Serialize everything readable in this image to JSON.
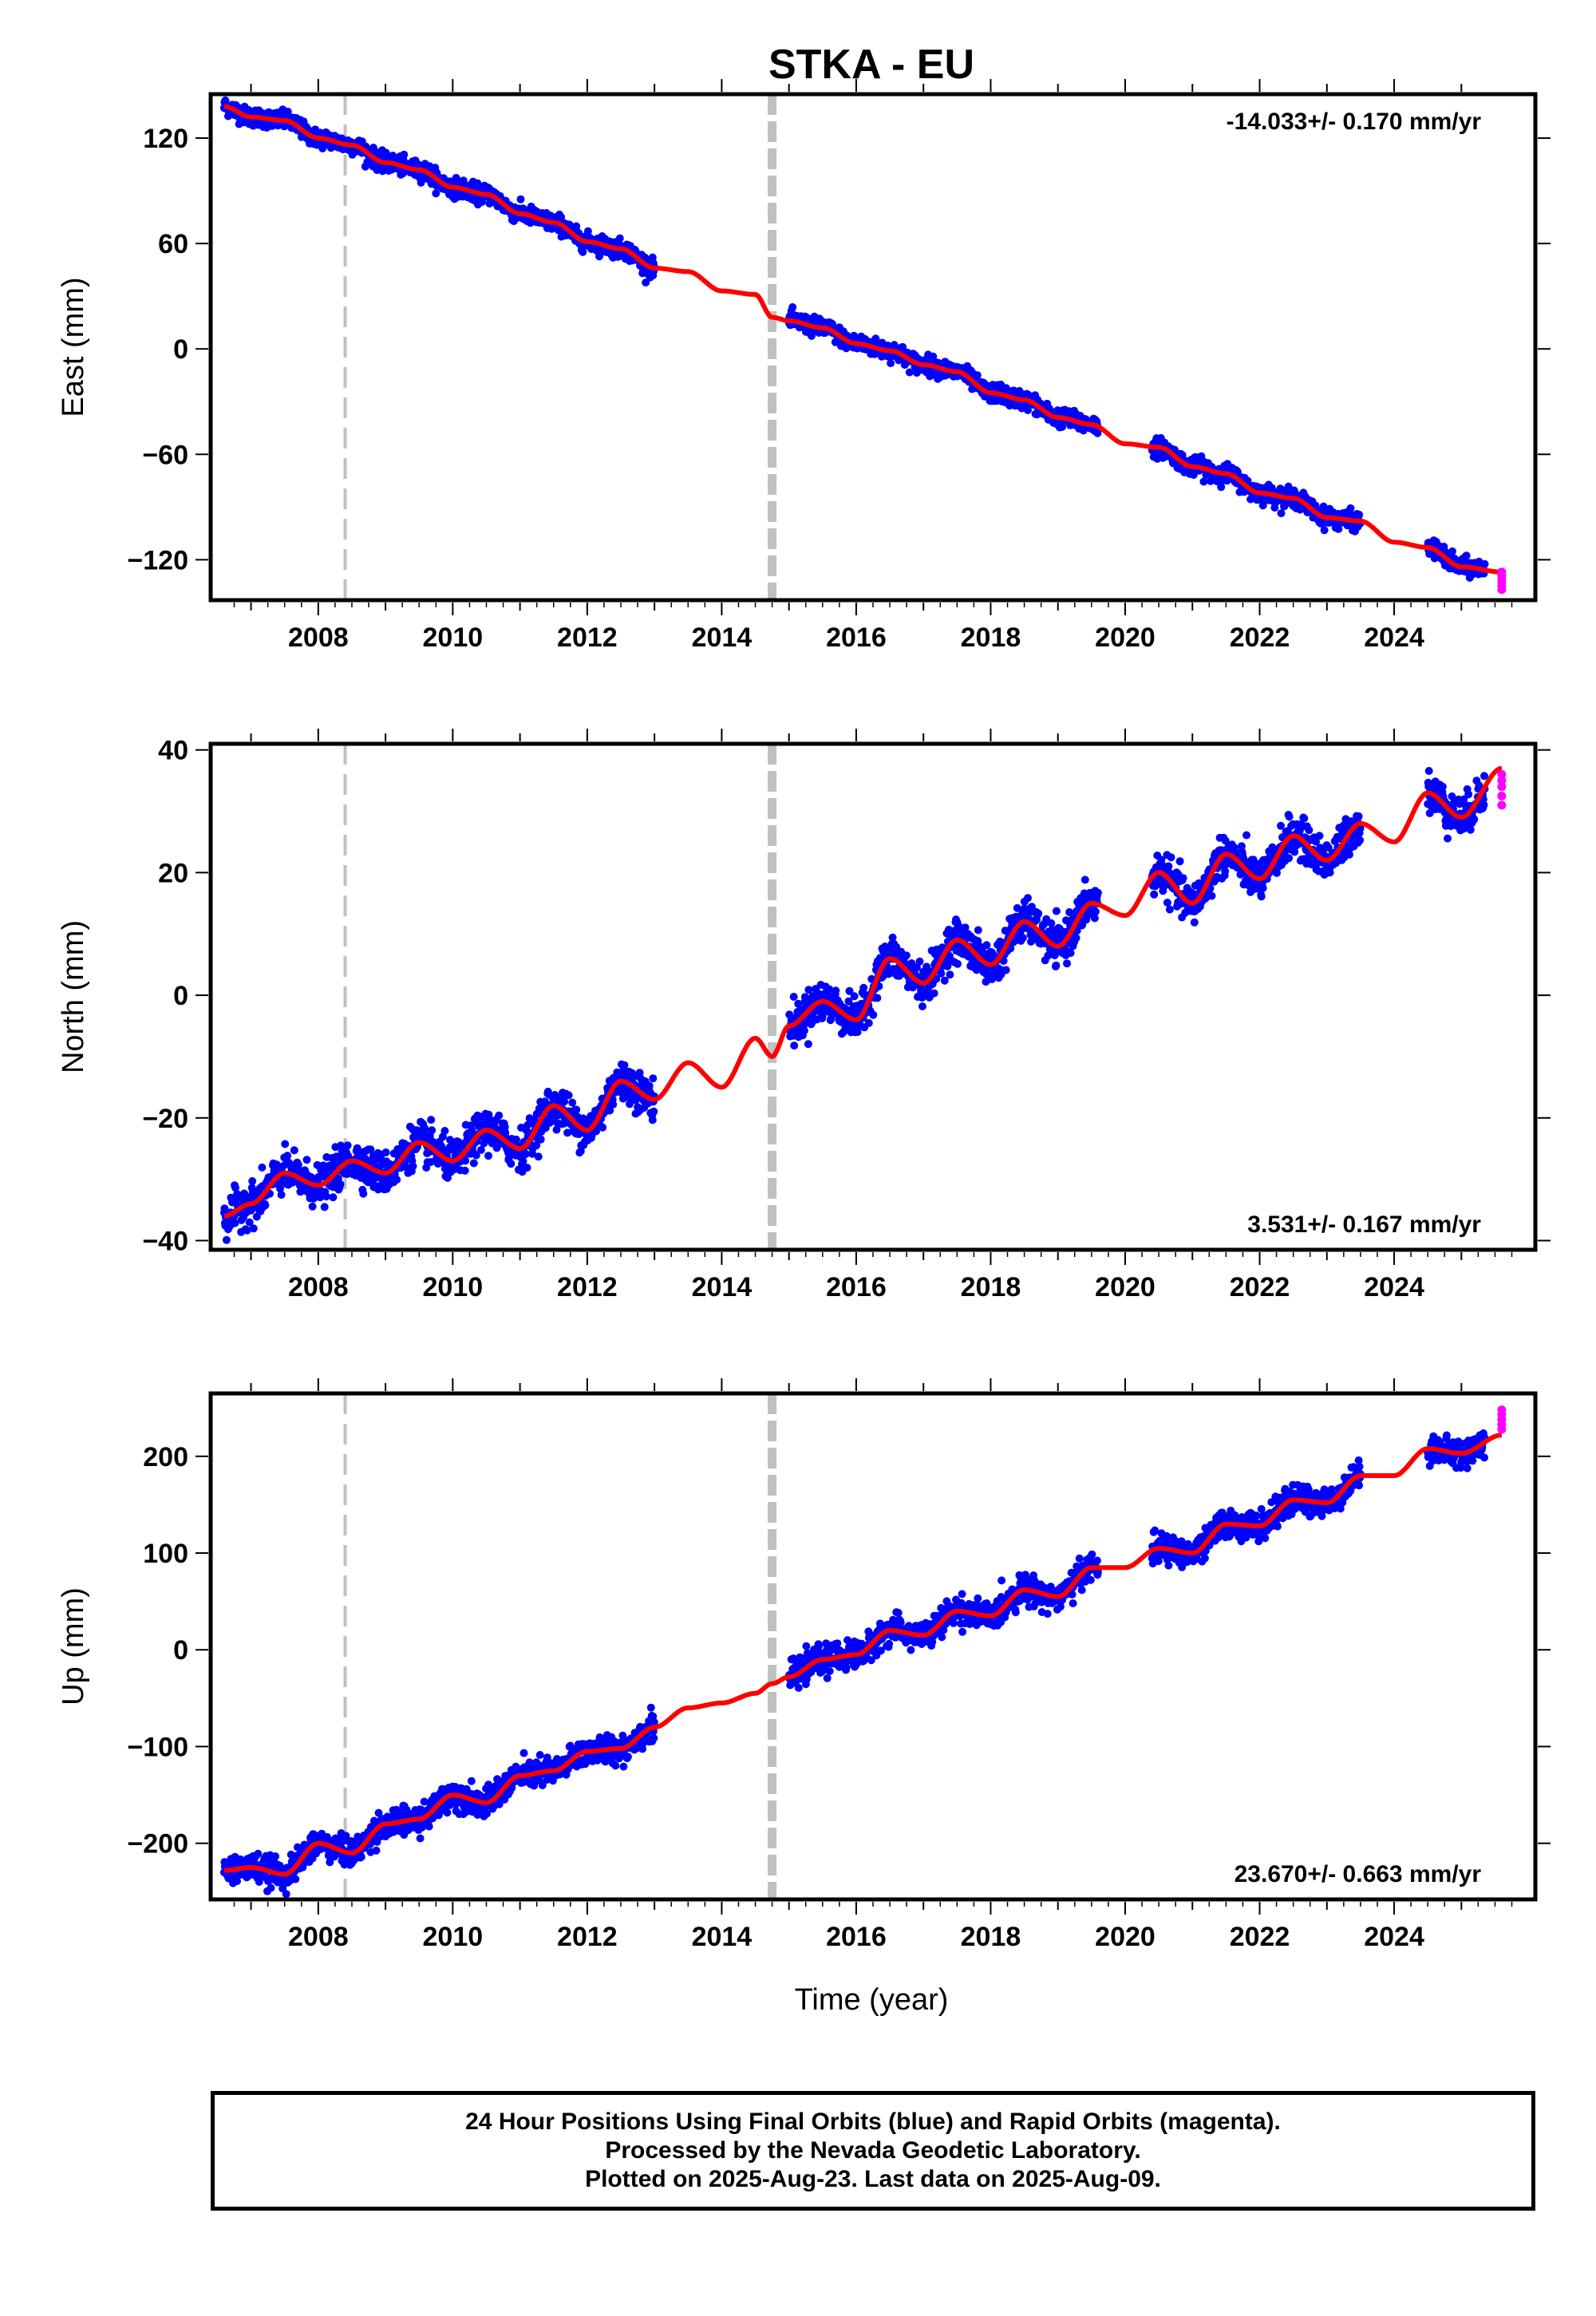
{
  "figure_title": "STKA - EU",
  "xlabel": "Time (year)",
  "footer": {
    "line1": "24 Hour Positions Using Final Orbits (blue) and Rapid Orbits (magenta).",
    "line2": "Processed by the Nevada Geodetic Laboratory.",
    "line3": "Plotted on 2025-Aug-23. Last data on 2025-Aug-09."
  },
  "colors": {
    "final_orbits": "#0000ff",
    "rapid_orbits": "#ff00ff",
    "model_fit": "#ff0000",
    "event_lines": "#c0c0c0"
  },
  "chart_data": [
    {
      "type": "scatter",
      "component": "East",
      "ylabel": "East (mm)",
      "rate_label": "-14.033+/- 0.170 mm/yr",
      "rate_position": "top-right",
      "xlim": [
        2006.4,
        2026.1
      ],
      "ylim": [
        -143,
        145
      ],
      "xticks": [
        2008,
        2010,
        2012,
        2014,
        2016,
        2018,
        2020,
        2022,
        2024
      ],
      "yticks": [
        120,
        60,
        0,
        -60,
        -120
      ],
      "ytick_labels": [
        "120",
        "60",
        "0",
        "−60",
        "−120"
      ],
      "event_lines": [
        {
          "x": 2008.4,
          "style": "thin-dashed"
        },
        {
          "x": 2014.75,
          "style": "thick-dashed"
        }
      ],
      "fit_series": {
        "name": "model",
        "x": [
          2006.6,
          2007.0,
          2007.5,
          2008.0,
          2008.5,
          2009.0,
          2009.5,
          2010.0,
          2010.5,
          2011.0,
          2011.5,
          2012.0,
          2012.5,
          2013.0,
          2013.5,
          2014.0,
          2014.5,
          2014.75,
          2015.0,
          2015.5,
          2016.0,
          2016.5,
          2017.0,
          2017.5,
          2018.0,
          2018.5,
          2019.0,
          2019.5,
          2020.0,
          2020.5,
          2021.0,
          2021.5,
          2022.0,
          2022.5,
          2023.0,
          2023.5,
          2024.0,
          2024.5,
          2025.0,
          2025.6
        ],
        "y": [
          138,
          132,
          130,
          120,
          116,
          106,
          102,
          92,
          88,
          77,
          72,
          61,
          57,
          46,
          44,
          33,
          31,
          18,
          16,
          12,
          3,
          -1,
          -9,
          -13,
          -25,
          -29,
          -39,
          -43,
          -54,
          -56,
          -67,
          -71,
          -82,
          -85,
          -96,
          -98,
          -110,
          -113,
          -124,
          -127
        ]
      },
      "final_series": {
        "name": "Final Orbits",
        "segments": [
          [
            2006.6,
            2013.0
          ],
          [
            2015.0,
            2019.6
          ],
          [
            2020.4,
            2023.5
          ],
          [
            2024.5,
            2025.35
          ]
        ],
        "scatter_mm": 2.5
      },
      "rapid_series": {
        "name": "Rapid Orbits",
        "x": [
          2025.6,
          2025.6,
          2025.6,
          2025.6,
          2025.6,
          2025.6
        ],
        "y": [
          -127,
          -129,
          -131,
          -133,
          -135,
          -137
        ]
      }
    },
    {
      "type": "scatter",
      "component": "North",
      "ylabel": "North (mm)",
      "rate_label": "3.531+/- 0.167 mm/yr",
      "rate_position": "bottom-right",
      "xlim": [
        2006.4,
        2026.1
      ],
      "ylim": [
        -41.5,
        41
      ],
      "xticks": [
        2008,
        2010,
        2012,
        2014,
        2016,
        2018,
        2020,
        2022,
        2024
      ],
      "yticks": [
        40,
        20,
        0,
        -20,
        -40
      ],
      "ytick_labels": [
        "40",
        "20",
        "0",
        "−20",
        "−40"
      ],
      "event_lines": [
        {
          "x": 2008.4,
          "style": "thin-dashed"
        },
        {
          "x": 2014.75,
          "style": "thick-dashed"
        }
      ],
      "fit_series": {
        "name": "model",
        "x": [
          2006.6,
          2007.0,
          2007.5,
          2008.0,
          2008.5,
          2009.0,
          2009.5,
          2010.0,
          2010.5,
          2011.0,
          2011.5,
          2012.0,
          2012.5,
          2013.0,
          2013.5,
          2014.0,
          2014.5,
          2014.75,
          2015.0,
          2015.5,
          2016.0,
          2016.5,
          2017.0,
          2017.5,
          2018.0,
          2018.5,
          2019.0,
          2019.5,
          2020.0,
          2020.5,
          2021.0,
          2021.5,
          2022.0,
          2022.5,
          2023.0,
          2023.5,
          2024.0,
          2024.5,
          2025.0,
          2025.6
        ],
        "y": [
          -36,
          -34,
          -29,
          -31,
          -27,
          -29,
          -24,
          -27,
          -22,
          -25,
          -18,
          -22,
          -14,
          -17,
          -11,
          -15,
          -7,
          -10,
          -5,
          -1,
          -4,
          6,
          2,
          9,
          5,
          12,
          8,
          15,
          13,
          20,
          15,
          23,
          19,
          26,
          22,
          28,
          25,
          33,
          29,
          37
        ]
      },
      "final_series": {
        "name": "Final Orbits",
        "segments": [
          [
            2006.6,
            2013.0
          ],
          [
            2015.0,
            2019.6
          ],
          [
            2020.4,
            2023.5
          ],
          [
            2024.5,
            2025.35
          ]
        ],
        "scatter_mm": 1.6
      },
      "rapid_series": {
        "name": "Rapid Orbits",
        "x": [
          2025.6,
          2025.6,
          2025.6,
          2025.6,
          2025.6
        ],
        "y": [
          36,
          35,
          34,
          32.5,
          31
        ]
      }
    },
    {
      "type": "scatter",
      "component": "Up",
      "ylabel": "Up (mm)",
      "rate_label": "23.670+/- 0.663 mm/yr",
      "rate_position": "bottom-right",
      "xlim": [
        2006.4,
        2026.1
      ],
      "ylim": [
        -258,
        265
      ],
      "xticks": [
        2008,
        2010,
        2012,
        2014,
        2016,
        2018,
        2020,
        2022,
        2024
      ],
      "yticks": [
        200,
        100,
        0,
        -100,
        -200
      ],
      "ytick_labels": [
        "200",
        "100",
        "0",
        "−100",
        "−200"
      ],
      "event_lines": [
        {
          "x": 2008.4,
          "style": "thin-dashed"
        },
        {
          "x": 2014.75,
          "style": "thick-dashed"
        }
      ],
      "fit_series": {
        "name": "model",
        "x": [
          2006.6,
          2007.0,
          2007.5,
          2008.0,
          2008.5,
          2009.0,
          2009.5,
          2010.0,
          2010.5,
          2011.0,
          2011.5,
          2012.0,
          2012.5,
          2013.0,
          2013.5,
          2014.0,
          2014.5,
          2014.75,
          2015.0,
          2015.5,
          2016.0,
          2016.5,
          2017.0,
          2017.5,
          2018.0,
          2018.5,
          2019.0,
          2019.5,
          2020.0,
          2020.5,
          2021.0,
          2021.5,
          2022.0,
          2022.5,
          2023.0,
          2023.5,
          2024.0,
          2024.5,
          2025.0,
          2025.6
        ],
        "y": [
          -228,
          -225,
          -232,
          -200,
          -210,
          -180,
          -175,
          -150,
          -158,
          -130,
          -125,
          -105,
          -102,
          -80,
          -60,
          -55,
          -45,
          -35,
          -28,
          -10,
          -5,
          20,
          15,
          40,
          35,
          62,
          55,
          85,
          85,
          105,
          100,
          130,
          128,
          155,
          152,
          180,
          180,
          208,
          203,
          222
        ]
      },
      "final_series": {
        "name": "Final Orbits",
        "segments": [
          [
            2006.6,
            2013.0
          ],
          [
            2015.0,
            2019.6
          ],
          [
            2020.4,
            2023.5
          ],
          [
            2024.5,
            2025.35
          ]
        ],
        "scatter_mm": 7
      },
      "rapid_series": {
        "name": "Rapid Orbits",
        "x": [
          2025.6,
          2025.6,
          2025.6,
          2025.6,
          2025.6
        ],
        "y": [
          248,
          243,
          238,
          233,
          228
        ]
      }
    }
  ]
}
